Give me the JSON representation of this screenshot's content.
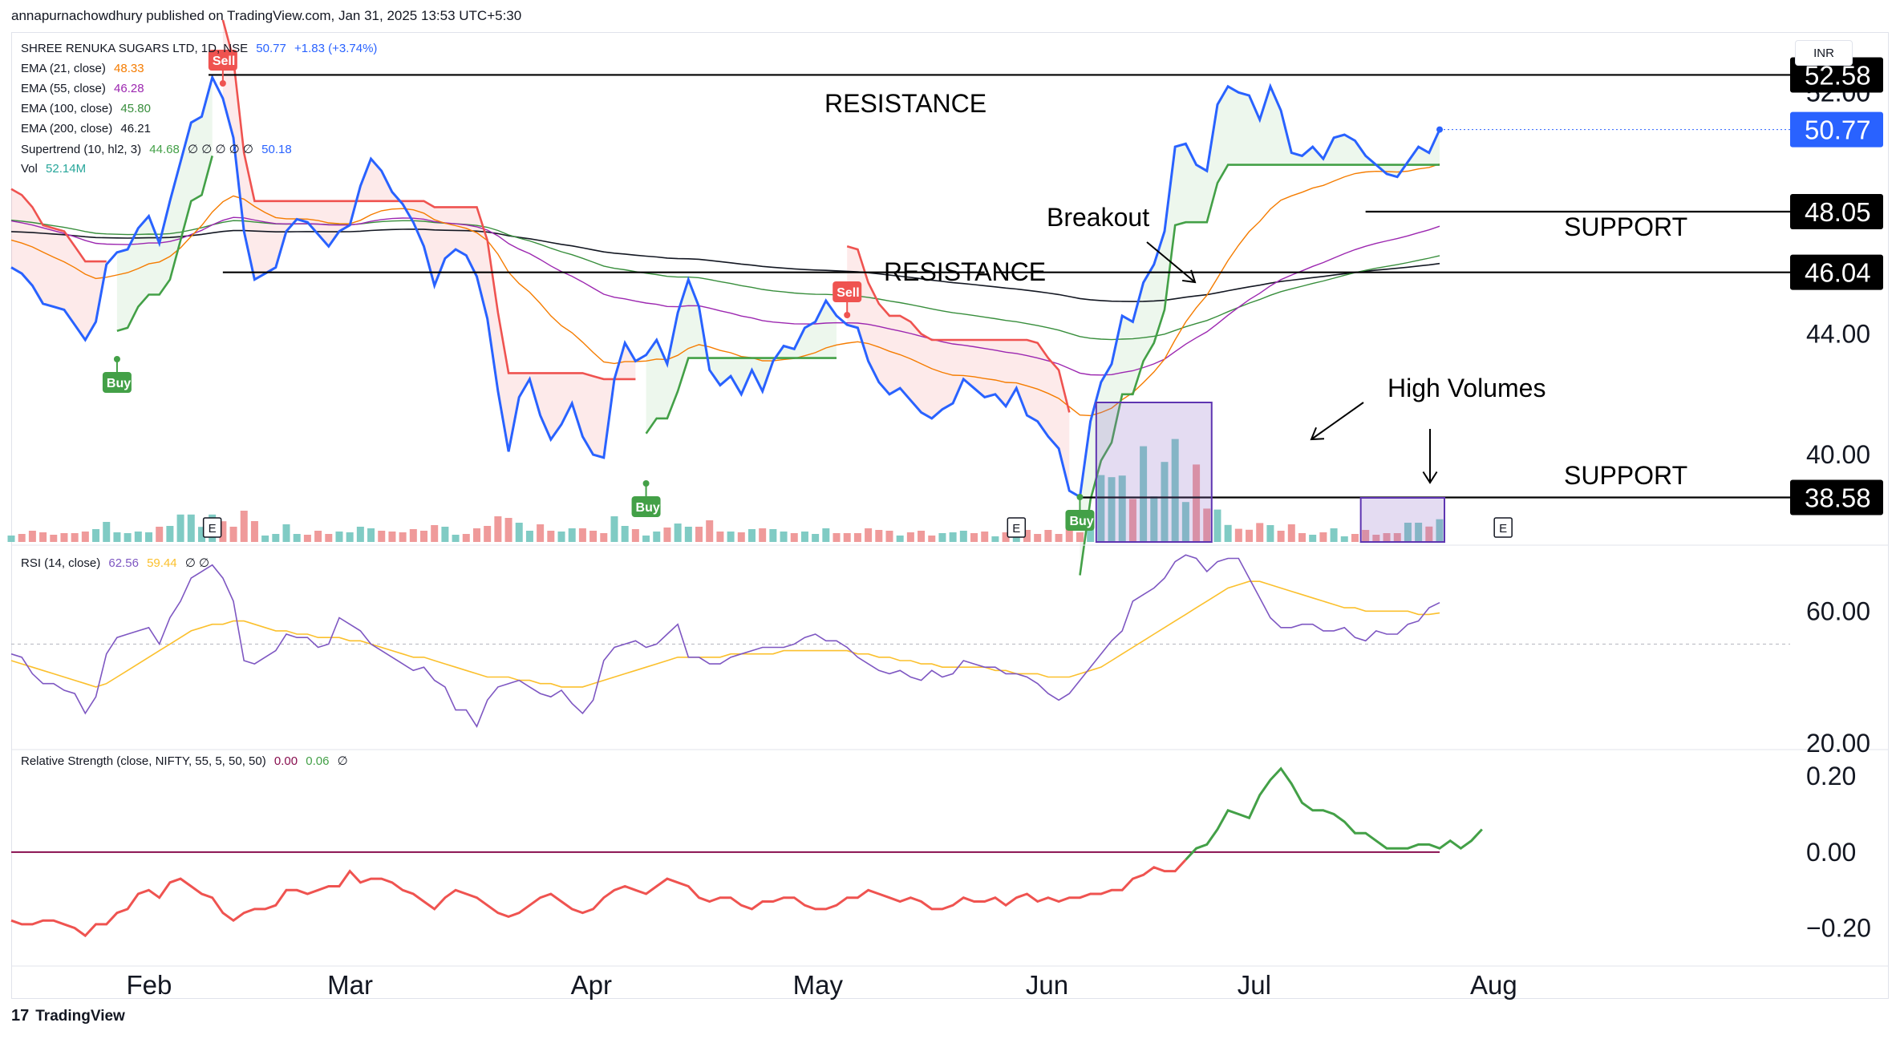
{
  "header": {
    "published_by": "annapurnachowdhury published on TradingView.com, Jan 31, 2025 13:53 UTC+5:30"
  },
  "footer": {
    "brand": "TradingView",
    "logo_glyph": "17"
  },
  "currency": "INR",
  "legend": {
    "symbol": "SHREE RENUKA SUGARS LTD, 1D, NSE",
    "last": "50.77",
    "change": "+1.83 (+3.74%)",
    "ema21": {
      "label": "EMA (21, close)",
      "value": "48.33",
      "color": "#f57c00"
    },
    "ema55": {
      "label": "EMA (55, close)",
      "value": "46.28",
      "color": "#9c27b0"
    },
    "ema100": {
      "label": "EMA (100, close)",
      "value": "45.80",
      "color": "#388e3c"
    },
    "ema200": {
      "label": "EMA (200, close)",
      "value": "46.21",
      "color": "#131722"
    },
    "supertrend": {
      "label": "Supertrend (10, hl2, 3)",
      "value1": "44.68",
      "value2": "50.18",
      "zeros": "∅ ∅ ∅ ∅ ∅"
    },
    "vol": {
      "label": "Vol",
      "value": "52.14M"
    },
    "rsi": {
      "label": "RSI (14, close)",
      "value1": "62.56",
      "value2": "59.44",
      "zeros": "∅ ∅"
    },
    "rs": {
      "label": "Relative Strength (close, NIFTY, 55, 5, 50, 50)",
      "value1": "0.00",
      "value2": "0.06",
      "zeros": "∅"
    }
  },
  "annotations": {
    "resistance_top": "RESISTANCE",
    "resistance_mid": "RESISTANCE",
    "support_top": "SUPPORT",
    "support_bottom": "SUPPORT",
    "breakout": "Breakout",
    "high_volumes": "High Volumes",
    "sell": "Sell",
    "buy": "Buy",
    "earnings": "E"
  },
  "price_tags": {
    "r1": "52.58",
    "last": "50.77",
    "s1": "48.05",
    "r2": "46.04",
    "s2": "38.58",
    "covered_tick": "52.00"
  },
  "colors": {
    "price": "#2962ff",
    "st_up": "#43a047",
    "st_down": "#ef5350",
    "vol_up": "#80cbc4",
    "vol_down": "#ef9a9a",
    "rsi": "#7e57c2",
    "rsi_ma": "#fbc02d",
    "rs_up": "#43a047",
    "rs_down": "#ef5350",
    "zero_line": "#880e4f"
  },
  "chart_data": [
    {
      "type": "line",
      "x_axis_labels": [
        "Feb",
        "Mar",
        "Apr",
        "May",
        "Jun",
        "Jul",
        "Aug"
      ],
      "y_axis_ticks": [
        40.0,
        44.0,
        52.0
      ],
      "ylim": [
        37,
        54
      ],
      "horizontal_levels": [
        52.58,
        48.05,
        46.04,
        38.58
      ],
      "series": [
        {
          "values": [
            46.2,
            46.0,
            45.6,
            45.0,
            44.9,
            44.8,
            44.3,
            43.8,
            44.4,
            46.3,
            46.7,
            46.8,
            47.5,
            47.9,
            47.0,
            48.4,
            49.7,
            51.0,
            51.2,
            52.5,
            51.8,
            50.5,
            47.4,
            45.8,
            46.0,
            46.2,
            47.4,
            47.8,
            47.7,
            47.3,
            46.9,
            47.4,
            47.6,
            48.9,
            49.8,
            49.4,
            48.7,
            48.3,
            47.7,
            46.9,
            45.6,
            46.5,
            46.8,
            46.6,
            45.9,
            44.5,
            42.1,
            40.1,
            41.9,
            42.5,
            41.3,
            40.5,
            41.0,
            41.7,
            40.6,
            40.0,
            39.9,
            42.5,
            43.7,
            43.1,
            43.3,
            43.8,
            43.0,
            44.7,
            45.8,
            44.9,
            42.8,
            42.3,
            42.6,
            42.0,
            42.8,
            42.1,
            43.1,
            43.6,
            43.5,
            44.2,
            44.4,
            45.1,
            44.6,
            44.3,
            44.2,
            43.1,
            42.4,
            42.0,
            42.2,
            41.8,
            41.4,
            41.2,
            41.5,
            41.7,
            42.5,
            42.2,
            41.9,
            42.0,
            41.6,
            42.2,
            41.3,
            41.1,
            40.6,
            40.2,
            38.8,
            38.6,
            41.1,
            42.4,
            43.0,
            44.6,
            44.4,
            45.7,
            46.3,
            47.4,
            50.2,
            50.3,
            49.6,
            49.4,
            51.6,
            52.2,
            52.0,
            51.9,
            51.1,
            52.2,
            51.4,
            50.0,
            49.9,
            50.2,
            49.8,
            50.5,
            50.6,
            50.4,
            49.9,
            49.6,
            49.3,
            49.2,
            49.7,
            50.2,
            50.0,
            50.77
          ]
        }
      ]
    },
    {
      "type": "bar",
      "title": "Vol",
      "values": [
        52.14
      ]
    },
    {
      "type": "line",
      "y_axis_ticks": [
        20.0,
        60.0
      ],
      "ylim": [
        18,
        80
      ],
      "series": [
        {
          "name": "RSI (14, close)",
          "values": [
            47,
            46,
            41,
            38,
            38,
            36,
            35,
            29,
            34,
            47,
            52,
            53,
            54,
            55,
            50,
            58,
            63,
            70,
            72,
            74,
            70,
            63,
            45,
            44,
            46,
            48,
            53,
            52,
            52,
            49,
            50,
            58,
            56,
            54,
            50,
            48,
            46,
            44,
            42,
            43,
            39,
            37,
            30,
            30,
            25,
            33,
            37,
            38,
            39,
            37,
            35,
            34,
            36,
            32,
            29,
            33,
            45,
            49,
            50,
            51,
            49,
            50,
            53,
            56,
            46,
            46,
            44,
            44,
            46,
            47,
            48,
            49,
            49,
            49,
            50,
            52,
            53,
            51,
            51,
            49,
            46,
            44,
            42,
            41,
            42,
            40,
            39,
            42,
            40,
            41,
            45,
            44,
            43,
            43,
            41,
            41,
            40,
            38,
            35,
            33,
            35,
            39,
            43,
            47,
            51,
            54,
            63,
            65,
            67,
            70,
            75,
            77,
            76,
            72,
            75,
            76,
            76,
            70,
            64,
            58,
            55,
            55,
            56,
            56,
            54,
            54,
            55,
            52,
            51,
            54,
            53,
            53,
            56,
            57,
            61,
            62.56
          ]
        },
        {
          "name": "RSI MA",
          "values": [
            45,
            44,
            43,
            42,
            41,
            40,
            39,
            38,
            37,
            38,
            40,
            42,
            44,
            46,
            48,
            50,
            52,
            54,
            55,
            56,
            56,
            57,
            57,
            56,
            55,
            54,
            54,
            53,
            53,
            52,
            52,
            52,
            51,
            51,
            50,
            49,
            48,
            47,
            46,
            46,
            45,
            44,
            43,
            42,
            41,
            40,
            40,
            40,
            39,
            39,
            38,
            38,
            37,
            37,
            37,
            38,
            39,
            40,
            41,
            42,
            43,
            44,
            45,
            46,
            46,
            46,
            46,
            46,
            47,
            47,
            47,
            47,
            47,
            48,
            48,
            48,
            48,
            48,
            48,
            48,
            47,
            47,
            46,
            46,
            45,
            45,
            44,
            44,
            43,
            43,
            43,
            43,
            43,
            42,
            42,
            41,
            41,
            41,
            40,
            40,
            40,
            41,
            42,
            43,
            45,
            47,
            49,
            51,
            53,
            55,
            57,
            59,
            61,
            63,
            65,
            67,
            68,
            69,
            69,
            68,
            67,
            66,
            65,
            64,
            63,
            62,
            61,
            61,
            60,
            60,
            60,
            60,
            60,
            59,
            59,
            59.44
          ]
        }
      ]
    },
    {
      "type": "line",
      "y_axis_ticks": [
        -0.2,
        0.0,
        0.2
      ],
      "ylim": [
        -0.3,
        0.27
      ],
      "series": [
        {
          "name": "Relative Strength (close, NIFTY, 55, 5, 50, 50)",
          "values": [
            -0.18,
            -0.19,
            -0.19,
            -0.18,
            -0.18,
            -0.19,
            -0.2,
            -0.22,
            -0.19,
            -0.19,
            -0.16,
            -0.15,
            -0.11,
            -0.1,
            -0.12,
            -0.08,
            -0.07,
            -0.09,
            -0.11,
            -0.12,
            -0.16,
            -0.18,
            -0.16,
            -0.15,
            -0.15,
            -0.14,
            -0.1,
            -0.1,
            -0.11,
            -0.1,
            -0.09,
            -0.09,
            -0.05,
            -0.08,
            -0.07,
            -0.07,
            -0.08,
            -0.1,
            -0.11,
            -0.13,
            -0.15,
            -0.12,
            -0.1,
            -0.11,
            -0.12,
            -0.14,
            -0.16,
            -0.17,
            -0.16,
            -0.14,
            -0.12,
            -0.11,
            -0.13,
            -0.15,
            -0.16,
            -0.15,
            -0.12,
            -0.1,
            -0.09,
            -0.1,
            -0.11,
            -0.09,
            -0.07,
            -0.08,
            -0.09,
            -0.12,
            -0.13,
            -0.12,
            -0.12,
            -0.14,
            -0.15,
            -0.13,
            -0.13,
            -0.12,
            -0.12,
            -0.14,
            -0.15,
            -0.15,
            -0.14,
            -0.12,
            -0.12,
            -0.1,
            -0.11,
            -0.12,
            -0.13,
            -0.12,
            -0.13,
            -0.15,
            -0.15,
            -0.14,
            -0.12,
            -0.13,
            -0.13,
            -0.12,
            -0.14,
            -0.12,
            -0.11,
            -0.13,
            -0.12,
            -0.13,
            -0.12,
            -0.12,
            -0.11,
            -0.11,
            -0.1,
            -0.1,
            -0.07,
            -0.06,
            -0.04,
            -0.05,
            -0.05,
            -0.02,
            0.01,
            0.02,
            0.06,
            0.11,
            0.1,
            0.09,
            0.15,
            0.19,
            0.22,
            0.18,
            0.13,
            0.11,
            0.11,
            0.1,
            0.08,
            0.05,
            0.05,
            0.03,
            0.01,
            0.01,
            0.01,
            0.02,
            0.02,
            0.01,
            0.03,
            0.01,
            0.03,
            0.06
          ]
        }
      ]
    }
  ]
}
